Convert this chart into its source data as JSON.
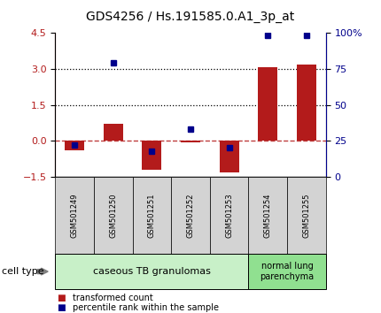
{
  "title": "GDS4256 / Hs.191585.0.A1_3p_at",
  "samples": [
    "GSM501249",
    "GSM501250",
    "GSM501251",
    "GSM501252",
    "GSM501253",
    "GSM501254",
    "GSM501255"
  ],
  "transformed_count": [
    -0.4,
    0.72,
    -1.22,
    -0.05,
    -1.32,
    3.07,
    3.18
  ],
  "percentile_rank": [
    22,
    79,
    18,
    33,
    20,
    98,
    98
  ],
  "ylim_left": [
    -1.5,
    4.5
  ],
  "ylim_right": [
    0,
    100
  ],
  "yticks_left": [
    -1.5,
    0,
    1.5,
    3,
    4.5
  ],
  "yticks_right": [
    0,
    25,
    50,
    75,
    100
  ],
  "ytick_labels_right": [
    "0",
    "25",
    "50",
    "75",
    "100%"
  ],
  "hlines_dotted": [
    1.5,
    3.0
  ],
  "hline_dashed": 0.0,
  "bar_color": "#b31b1b",
  "square_color": "#00008b",
  "group1_label": "caseous TB granulomas",
  "group2_label": "normal lung\nparenchyma",
  "group1_count": 5,
  "group2_count": 2,
  "cell_type_label": "cell type",
  "legend_bar_label": "transformed count",
  "legend_sq_label": "percentile rank within the sample",
  "group1_color": "#c8f0c8",
  "group2_color": "#90e090",
  "title_fontsize": 10,
  "tick_fontsize": 8,
  "label_fontsize": 7
}
